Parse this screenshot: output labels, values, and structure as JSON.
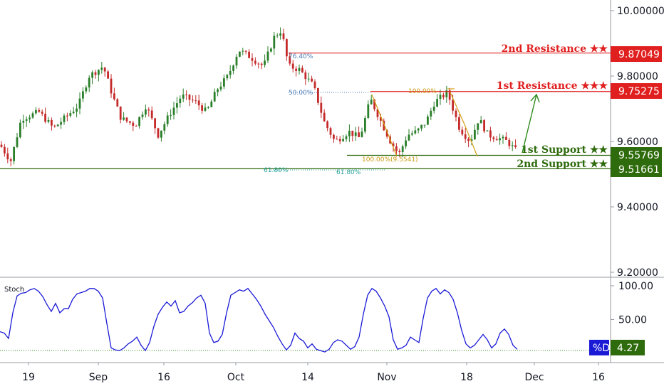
{
  "chart_data": [
    {
      "type": "candlestick",
      "ylim": [
        9.2,
        10.0
      ],
      "y_ticks": [
        "10.00000",
        "9.80000",
        "9.60000",
        "9.40000",
        "9.20000"
      ],
      "x_ticks": [
        "19",
        "Sep",
        "16",
        "Oct",
        "14",
        "Nov",
        "18",
        "Dec",
        "16"
      ],
      "levels": [
        {
          "id": "r2",
          "label": "2nd Resistance ★★",
          "value": "9.87049",
          "color": "#e01f1f"
        },
        {
          "id": "r1",
          "label": "1st Resistance ★★★",
          "value": "9.75275",
          "color": "#e01f1f"
        },
        {
          "id": "s1",
          "label": "1st Support ★★",
          "value": "9.55769",
          "color": "#2e6b0c"
        },
        {
          "id": "s2",
          "label": "2nd Support ★★",
          "value": "9.51661",
          "color": "#2e6b0c"
        }
      ],
      "annotations": [
        "76.40%",
        "50.00%",
        "100.00%",
        "100.00%(9.5541)",
        "61.80%",
        "61.80%"
      ]
    },
    {
      "type": "line",
      "title": "Stoch",
      "ylim": [
        0,
        100
      ],
      "y_ticks": [
        "100.00",
        "50.00"
      ],
      "series": [
        {
          "name": "%D",
          "current_value": "4.27",
          "color": "#1a1ad6",
          "x": [
            0,
            6,
            12,
            18,
            24,
            30,
            36,
            42,
            48,
            54,
            60,
            66,
            72,
            78,
            84,
            90,
            96,
            102,
            108,
            114,
            120,
            126,
            132,
            138,
            144,
            150,
            156,
            162,
            168,
            174,
            180,
            186,
            192,
            198,
            204,
            210,
            216,
            222,
            228,
            234,
            240,
            246,
            252,
            258,
            264,
            270,
            276,
            282,
            288,
            294,
            300,
            306,
            312,
            318,
            324,
            330,
            336,
            342,
            348,
            354,
            360,
            366,
            372,
            378,
            384,
            390,
            396,
            402,
            408,
            414,
            420,
            426,
            432,
            438,
            444,
            450,
            456,
            462,
            468,
            474,
            480,
            486,
            492,
            498,
            504,
            510,
            516,
            522,
            528,
            534,
            540,
            546,
            552,
            558,
            564,
            570,
            576,
            582,
            588,
            594,
            600,
            606,
            612,
            618,
            624,
            630,
            636,
            642,
            648,
            654,
            660,
            666,
            672,
            678,
            684,
            690,
            696,
            702,
            708,
            714,
            720,
            726
          ],
          "y": [
            32,
            30,
            22,
            60,
            85,
            89,
            90,
            94,
            96,
            92,
            84,
            72,
            62,
            74,
            60,
            66,
            66,
            80,
            88,
            90,
            92,
            96,
            96,
            92,
            82,
            44,
            8,
            5,
            4,
            8,
            14,
            18,
            24,
            12,
            4,
            16,
            40,
            58,
            68,
            76,
            70,
            78,
            60,
            62,
            70,
            75,
            82,
            86,
            74,
            30,
            16,
            18,
            28,
            60,
            86,
            90,
            94,
            92,
            96,
            88,
            80,
            70,
            58,
            48,
            38,
            25,
            14,
            5,
            12,
            30,
            22,
            18,
            8,
            14,
            6,
            4,
            2,
            6,
            16,
            20,
            18,
            12,
            6,
            10,
            24,
            58,
            86,
            96,
            92,
            82,
            70,
            54,
            20,
            6,
            8,
            12,
            24,
            20,
            16,
            52,
            82,
            92,
            96,
            88,
            94,
            90,
            80,
            60,
            34,
            14,
            8,
            12,
            20,
            28,
            20,
            8,
            14,
            30,
            36,
            28,
            12,
            6
          ]
        }
      ]
    }
  ]
}
